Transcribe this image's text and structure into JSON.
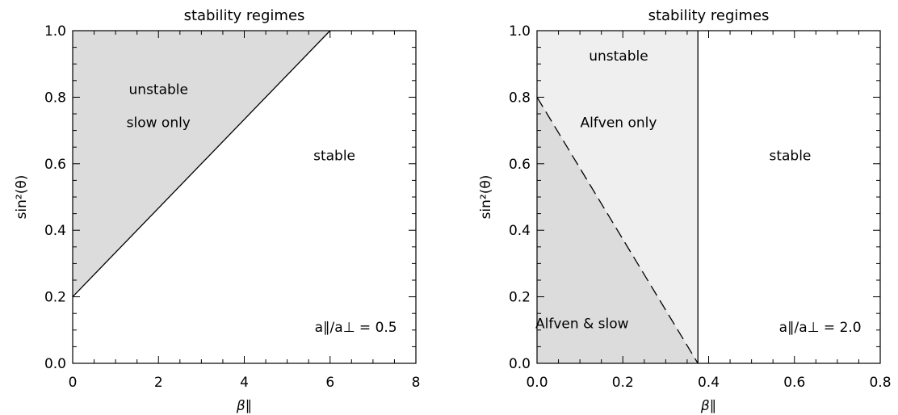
{
  "chart_data": [
    {
      "type": "area",
      "title": "stability regimes",
      "xlabel": "β∥",
      "ylabel": "sin²(θ)",
      "xlim": [
        0,
        8
      ],
      "ylim": [
        0,
        1
      ],
      "xticks": [
        "0",
        "2",
        "4",
        "6",
        "8"
      ],
      "yticks": [
        "0.0",
        "0.2",
        "0.4",
        "0.6",
        "0.8",
        "1.0"
      ],
      "boundary": {
        "style": "solid",
        "x": [
          0,
          6
        ],
        "y": [
          0.2,
          1.0
        ]
      },
      "regions": [
        {
          "vertices": [
            [
              0,
              0.2
            ],
            [
              6,
              1.0
            ],
            [
              0,
              1.0
            ]
          ],
          "color": "#dcdcdc"
        }
      ],
      "annotations": [
        {
          "text": "unstable",
          "x": 2.0,
          "y": 0.81
        },
        {
          "text": "slow only",
          "x": 2.0,
          "y": 0.71
        },
        {
          "text": "stable",
          "x": 6.1,
          "y": 0.61
        },
        {
          "text": "a∥/a⊥ = 0.5",
          "x": 6.6,
          "y": 0.095
        }
      ]
    },
    {
      "type": "area",
      "title": "stability regimes",
      "xlabel": "β∥",
      "ylabel": "sin²(θ)",
      "xlim": [
        0,
        0.8
      ],
      "ylim": [
        0,
        1
      ],
      "xticks": [
        "0.0",
        "0.2",
        "0.4",
        "0.6",
        "0.8"
      ],
      "yticks": [
        "0.0",
        "0.2",
        "0.4",
        "0.6",
        "0.8",
        "1.0"
      ],
      "boundary": {
        "style": "solid",
        "x": [
          0.375,
          0.375
        ],
        "y": [
          0,
          1.0
        ]
      },
      "dashed_boundary": {
        "x": [
          0,
          0.375
        ],
        "y": [
          0.8,
          0
        ]
      },
      "regions": [
        {
          "vertices": [
            [
              0,
              0
            ],
            [
              0.375,
              0
            ],
            [
              0.375,
              1.0
            ],
            [
              0,
              1.0
            ]
          ],
          "color": "#efefef"
        },
        {
          "vertices": [
            [
              0,
              0
            ],
            [
              0.375,
              0
            ],
            [
              0,
              0.8
            ]
          ],
          "color": "#dcdcdc"
        }
      ],
      "annotations": [
        {
          "text": "unstable",
          "x": 0.19,
          "y": 0.91
        },
        {
          "text": "Alfven only",
          "x": 0.19,
          "y": 0.71
        },
        {
          "text": "stable",
          "x": 0.59,
          "y": 0.61
        },
        {
          "text": "Alfven & slow",
          "x": 0.105,
          "y": 0.105
        },
        {
          "text": "a∥/a⊥ = 2.0",
          "x": 0.66,
          "y": 0.095
        }
      ]
    }
  ]
}
